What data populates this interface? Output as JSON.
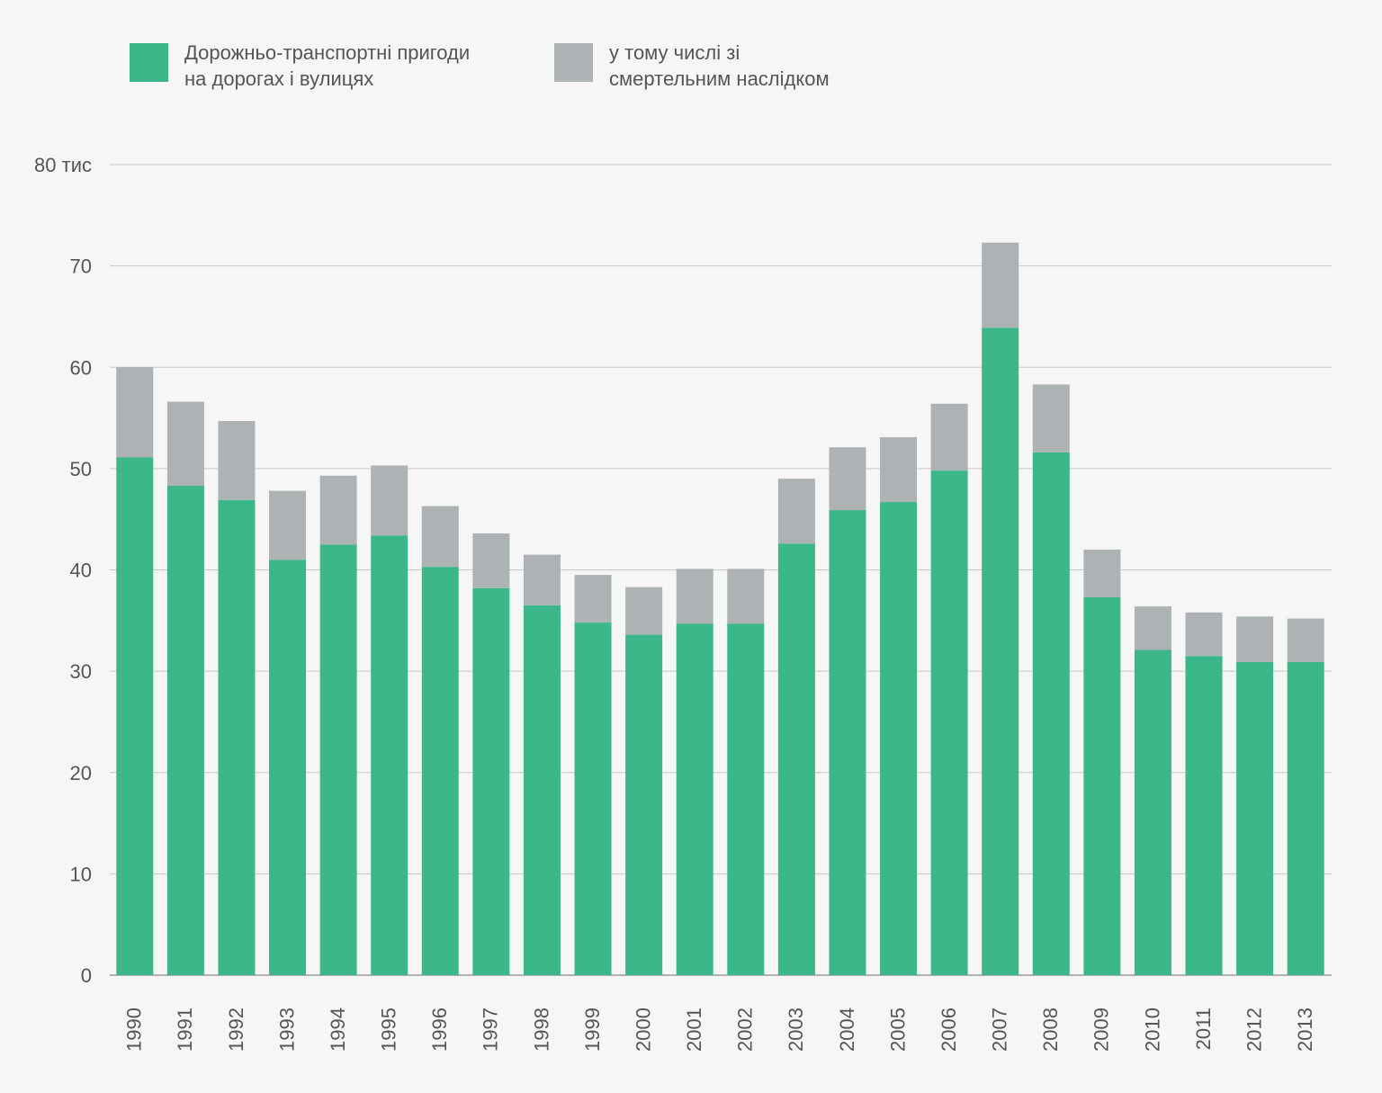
{
  "legend": {
    "items": [
      {
        "label": "Дорожньо-транспортні пригоди\nна дорогах і вулицях",
        "color": "#3bb78a"
      },
      {
        "label": "у тому числі зі\nсмертельним наслідком",
        "color": "#adb2b4"
      }
    ]
  },
  "colors": {
    "background": "#f6f6f6",
    "grid": "#c8c8c8",
    "text": "#555555"
  },
  "chart_data": {
    "type": "bar",
    "stacked": true,
    "categories": [
      "1990",
      "1991",
      "1992",
      "1993",
      "1994",
      "1995",
      "1996",
      "1997",
      "1998",
      "1999",
      "2000",
      "2001",
      "2002",
      "2003",
      "2004",
      "2005",
      "2006",
      "2007",
      "2008",
      "2009",
      "2010",
      "2011",
      "2012",
      "2013"
    ],
    "series": [
      {
        "name": "Дорожньо-транспортні пригоди на дорогах і вулицях",
        "color": "#3bb78a",
        "values": [
          51.1,
          48.3,
          46.9,
          41.0,
          42.5,
          43.4,
          40.3,
          38.2,
          36.5,
          34.8,
          33.6,
          34.7,
          34.7,
          42.6,
          45.9,
          46.7,
          49.8,
          63.9,
          51.6,
          37.3,
          32.1,
          31.5,
          30.9,
          30.9
        ]
      },
      {
        "name": "у тому числі зі смертельним наслідком",
        "color": "#adb2b4",
        "values": [
          8.9,
          8.3,
          7.8,
          6.8,
          6.8,
          6.9,
          6.0,
          5.4,
          5.0,
          4.7,
          4.7,
          5.4,
          5.4,
          6.4,
          6.2,
          6.4,
          6.6,
          8.4,
          6.7,
          4.7,
          4.3,
          4.3,
          4.5,
          4.3
        ]
      }
    ],
    "yticks": [
      "0",
      "10",
      "20",
      "30",
      "40",
      "50",
      "60",
      "70",
      "80 тис"
    ],
    "ylim": [
      0,
      80
    ],
    "grid": true,
    "legend_position": "top-left"
  }
}
